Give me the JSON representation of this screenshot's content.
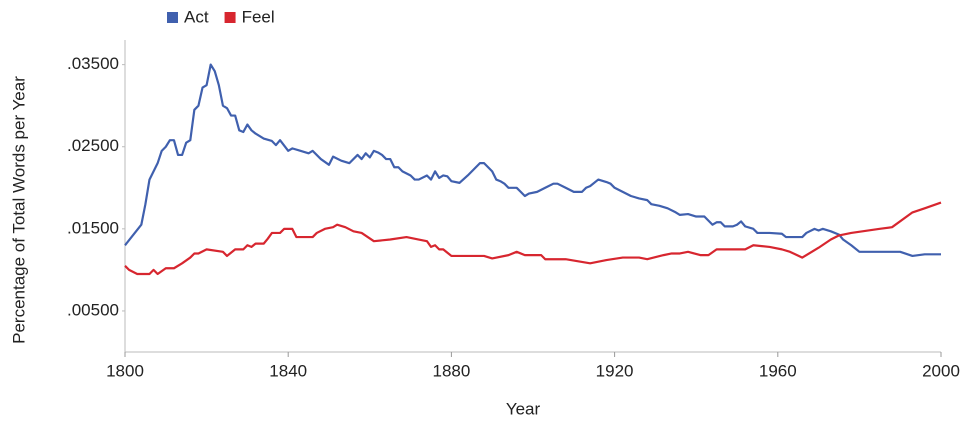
{
  "chart_data": {
    "type": "line",
    "x_label": "Year",
    "y_label": "Percentage of Total Words per Year",
    "xlim": [
      1800,
      2000
    ],
    "xticks": [
      1800,
      1840,
      1880,
      1920,
      1960,
      2000
    ],
    "ylim": [
      0,
      0.038
    ],
    "yticks": [
      {
        "value": 0.005,
        "label": ".00500"
      },
      {
        "value": 0.015,
        "label": ".01500"
      },
      {
        "value": 0.025,
        "label": ".02500"
      },
      {
        "value": 0.035,
        "label": ".03500"
      }
    ],
    "grid": false,
    "legend": "top-left",
    "series": [
      {
        "name": "Act",
        "color": "#4060ae",
        "x": [
          1800,
          1804,
          1805,
          1806,
          1808,
          1809,
          1810,
          1811,
          1812,
          1813,
          1814,
          1815,
          1816,
          1817,
          1818,
          1819,
          1820,
          1821,
          1822,
          1823,
          1824,
          1825,
          1826,
          1827,
          1828,
          1829,
          1830,
          1831,
          1832,
          1834,
          1836,
          1837,
          1838,
          1840,
          1841,
          1843,
          1845,
          1846,
          1848,
          1850,
          1851,
          1853,
          1855,
          1857,
          1858,
          1859,
          1860,
          1861,
          1862,
          1863,
          1864,
          1865,
          1866,
          1867,
          1868,
          1870,
          1871,
          1872,
          1874,
          1875,
          1876,
          1877,
          1878,
          1879,
          1880,
          1882,
          1884,
          1886,
          1887,
          1888,
          1889,
          1890,
          1891,
          1892,
          1893,
          1894,
          1896,
          1897,
          1898,
          1899,
          1901,
          1903,
          1905,
          1906,
          1908,
          1910,
          1912,
          1913,
          1914,
          1916,
          1918,
          1919,
          1920,
          1922,
          1924,
          1926,
          1928,
          1929,
          1931,
          1933,
          1935,
          1936,
          1938,
          1940,
          1942,
          1944,
          1945,
          1946,
          1947,
          1949,
          1950,
          1951,
          1952,
          1954,
          1955,
          1958,
          1961,
          1962,
          1966,
          1967,
          1969,
          1970,
          1971,
          1973,
          1975,
          1976,
          1978,
          1980,
          1990,
          1993,
          1996,
          2000
        ],
        "values": [
          0.013,
          0.0155,
          0.018,
          0.021,
          0.023,
          0.0245,
          0.025,
          0.0258,
          0.0258,
          0.024,
          0.024,
          0.0255,
          0.0258,
          0.0295,
          0.03,
          0.0322,
          0.0325,
          0.035,
          0.0342,
          0.0325,
          0.03,
          0.0297,
          0.0288,
          0.0288,
          0.027,
          0.0268,
          0.0277,
          0.027,
          0.0266,
          0.026,
          0.0257,
          0.0252,
          0.0258,
          0.0245,
          0.0248,
          0.0245,
          0.0242,
          0.0245,
          0.0235,
          0.0228,
          0.0238,
          0.0233,
          0.023,
          0.024,
          0.0235,
          0.0242,
          0.0237,
          0.0245,
          0.0243,
          0.024,
          0.0235,
          0.0235,
          0.0225,
          0.0225,
          0.022,
          0.0215,
          0.021,
          0.021,
          0.0215,
          0.021,
          0.022,
          0.0212,
          0.0215,
          0.0214,
          0.0208,
          0.0206,
          0.0215,
          0.0225,
          0.023,
          0.023,
          0.0225,
          0.022,
          0.021,
          0.0208,
          0.0205,
          0.02,
          0.02,
          0.0195,
          0.019,
          0.0193,
          0.0195,
          0.02,
          0.0205,
          0.0205,
          0.02,
          0.0195,
          0.0195,
          0.02,
          0.0202,
          0.021,
          0.0207,
          0.0205,
          0.02,
          0.0195,
          0.019,
          0.0187,
          0.0185,
          0.018,
          0.0178,
          0.0175,
          0.017,
          0.0167,
          0.0168,
          0.0165,
          0.0165,
          0.0155,
          0.0158,
          0.0158,
          0.0153,
          0.0153,
          0.0155,
          0.0159,
          0.0153,
          0.015,
          0.0145,
          0.0145,
          0.0144,
          0.014,
          0.014,
          0.0145,
          0.015,
          0.0148,
          0.015,
          0.0147,
          0.0143,
          0.0137,
          0.013,
          0.0122,
          0.0122,
          0.0117,
          0.0119,
          0.0119
        ]
      },
      {
        "name": "Feel",
        "color": "#d7262f",
        "x": [
          1800,
          1801,
          1803,
          1806,
          1807,
          1808,
          1810,
          1812,
          1814,
          1816,
          1817,
          1818,
          1820,
          1824,
          1825,
          1827,
          1829,
          1830,
          1831,
          1832,
          1834,
          1835,
          1836,
          1838,
          1839,
          1841,
          1842,
          1846,
          1847,
          1849,
          1851,
          1852,
          1854,
          1856,
          1858,
          1861,
          1865,
          1869,
          1872,
          1874,
          1875,
          1876,
          1877,
          1878,
          1880,
          1888,
          1890,
          1894,
          1896,
          1898,
          1902,
          1903,
          1908,
          1914,
          1918,
          1922,
          1926,
          1928,
          1932,
          1934,
          1936,
          1938,
          1941,
          1943,
          1945,
          1948,
          1952,
          1954,
          1958,
          1961,
          1963,
          1966,
          1970,
          1973,
          1975,
          1978,
          1985,
          1988,
          1993,
          1996,
          2000
        ],
        "values": [
          0.0105,
          0.01,
          0.0095,
          0.0095,
          0.01,
          0.0095,
          0.0102,
          0.0102,
          0.0108,
          0.0115,
          0.012,
          0.012,
          0.0125,
          0.0122,
          0.0117,
          0.0125,
          0.0125,
          0.013,
          0.0128,
          0.0132,
          0.0132,
          0.0138,
          0.0145,
          0.0145,
          0.015,
          0.015,
          0.014,
          0.014,
          0.0145,
          0.015,
          0.0152,
          0.0155,
          0.0152,
          0.0147,
          0.0145,
          0.0135,
          0.0137,
          0.014,
          0.0137,
          0.0135,
          0.0128,
          0.013,
          0.0125,
          0.0125,
          0.0117,
          0.0117,
          0.0114,
          0.0118,
          0.0122,
          0.0118,
          0.0118,
          0.0113,
          0.0113,
          0.0108,
          0.0112,
          0.0115,
          0.0115,
          0.0113,
          0.0118,
          0.012,
          0.012,
          0.0122,
          0.0118,
          0.0118,
          0.0125,
          0.0125,
          0.0125,
          0.013,
          0.0128,
          0.0125,
          0.0122,
          0.0115,
          0.0127,
          0.0137,
          0.0142,
          0.0145,
          0.015,
          0.0152,
          0.017,
          0.0175,
          0.0182
        ]
      }
    ]
  }
}
